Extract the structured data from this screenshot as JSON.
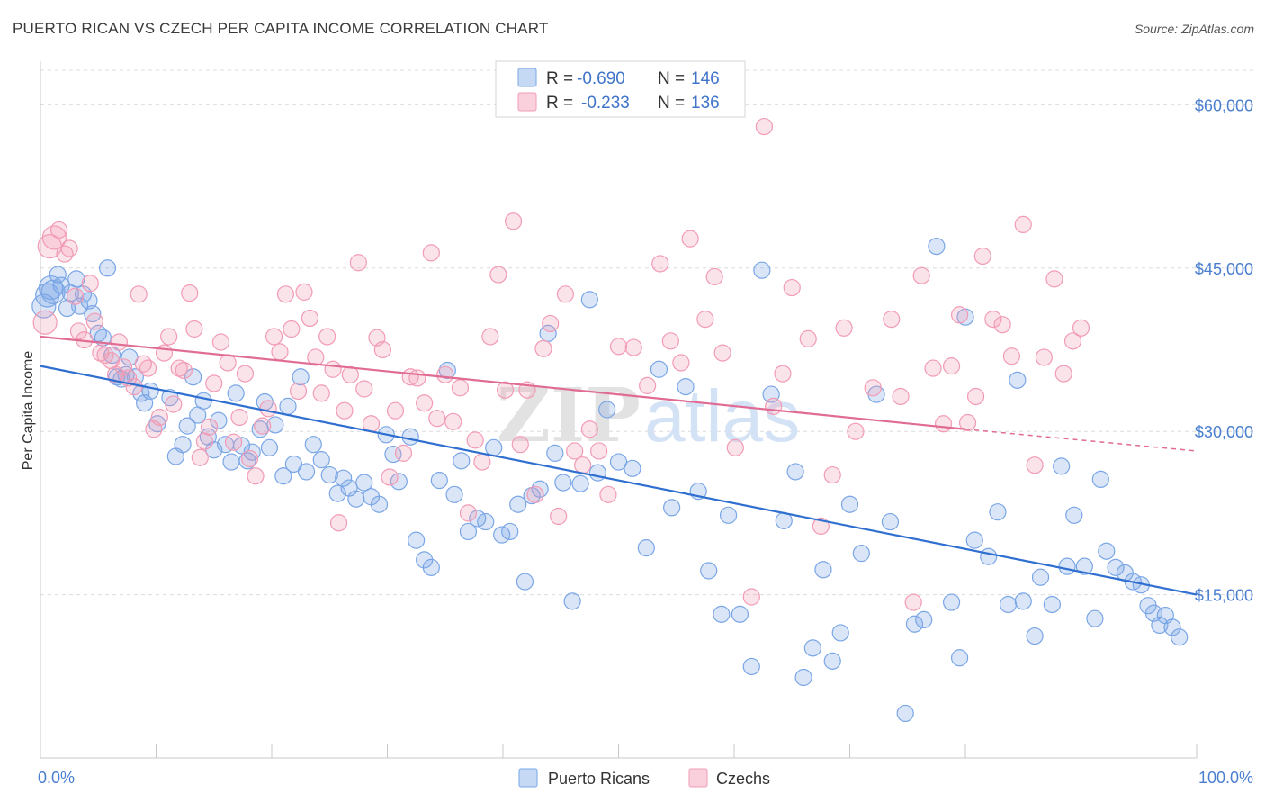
{
  "title": "PUERTO RICAN VS CZECH PER CAPITA INCOME CORRELATION CHART",
  "source": "Source: ZipAtlas.com",
  "chart_data": {
    "type": "scatter",
    "ylabel": "Per Capita Income",
    "xlim": [
      0,
      100
    ],
    "ylim": [
      0,
      64000
    ],
    "x_tick_labels": [
      "0.0%",
      "100.0%"
    ],
    "y_ticks": [
      15000,
      30000,
      45000,
      60000
    ],
    "y_tick_labels": [
      "$15,000",
      "$30,000",
      "$45,000",
      "$60,000"
    ],
    "grid": true,
    "watermark": "ZIPatlas",
    "legend_top": [
      {
        "r_label": "R =",
        "r_value": "-0.690",
        "n_label": "N =",
        "n_value": "146",
        "color": "#7aa6e6"
      },
      {
        "r_label": "R =",
        "r_value": "-0.233",
        "n_label": "N =",
        "n_value": "136",
        "color": "#f29bb5"
      }
    ],
    "series": [
      {
        "name": "Puerto Ricans",
        "color": "#7aa6e6",
        "line_color": "#2f6fd0",
        "trend": {
          "x": [
            0,
            100
          ],
          "y": [
            36000,
            15000
          ]
        },
        "points": [
          [
            0.3,
            41500
          ],
          [
            0.6,
            42500
          ],
          [
            0.9,
            43200
          ],
          [
            1.1,
            42800
          ],
          [
            1.5,
            44400
          ],
          [
            1.8,
            43400
          ],
          [
            2.3,
            41300
          ],
          [
            2.6,
            42700
          ],
          [
            3.1,
            44000
          ],
          [
            3.4,
            41500
          ],
          [
            3.7,
            42600
          ],
          [
            4.2,
            42000
          ],
          [
            4.5,
            40800
          ],
          [
            5.0,
            39000
          ],
          [
            5.4,
            38600
          ],
          [
            5.8,
            45000
          ],
          [
            6.2,
            37000
          ],
          [
            6.6,
            35000
          ],
          [
            7.0,
            34800
          ],
          [
            7.4,
            35200
          ],
          [
            7.7,
            36800
          ],
          [
            8.2,
            35000
          ],
          [
            8.7,
            33500
          ],
          [
            9.0,
            32600
          ],
          [
            9.5,
            33700
          ],
          [
            10.1,
            30700
          ],
          [
            11.2,
            33100
          ],
          [
            11.7,
            27700
          ],
          [
            12.3,
            28800
          ],
          [
            12.7,
            30500
          ],
          [
            13.2,
            35000
          ],
          [
            13.6,
            31500
          ],
          [
            14.1,
            32800
          ],
          [
            14.5,
            29500
          ],
          [
            15.0,
            28300
          ],
          [
            15.4,
            31000
          ],
          [
            16.0,
            28800
          ],
          [
            16.5,
            27200
          ],
          [
            16.9,
            33500
          ],
          [
            17.4,
            28700
          ],
          [
            17.9,
            27300
          ],
          [
            18.3,
            28100
          ],
          [
            19.0,
            30200
          ],
          [
            19.4,
            32700
          ],
          [
            19.8,
            28500
          ],
          [
            20.3,
            30600
          ],
          [
            21.0,
            25900
          ],
          [
            21.4,
            32300
          ],
          [
            21.9,
            27000
          ],
          [
            22.5,
            35000
          ],
          [
            23.0,
            26300
          ],
          [
            23.6,
            28800
          ],
          [
            24.3,
            27400
          ],
          [
            25.0,
            26000
          ],
          [
            25.7,
            24300
          ],
          [
            26.2,
            25700
          ],
          [
            26.7,
            24800
          ],
          [
            27.3,
            23800
          ],
          [
            28.0,
            25300
          ],
          [
            28.6,
            24000
          ],
          [
            29.3,
            23300
          ],
          [
            29.9,
            29700
          ],
          [
            30.5,
            27900
          ],
          [
            31.0,
            25400
          ],
          [
            32.0,
            29500
          ],
          [
            32.5,
            20000
          ],
          [
            33.2,
            18200
          ],
          [
            33.8,
            17500
          ],
          [
            34.5,
            25500
          ],
          [
            35.2,
            35600
          ],
          [
            35.8,
            24200
          ],
          [
            36.4,
            27300
          ],
          [
            37.0,
            20800
          ],
          [
            37.8,
            22000
          ],
          [
            38.5,
            21700
          ],
          [
            39.2,
            28500
          ],
          [
            39.9,
            20500
          ],
          [
            40.6,
            20800
          ],
          [
            41.3,
            23300
          ],
          [
            41.9,
            16200
          ],
          [
            42.5,
            24100
          ],
          [
            43.2,
            24700
          ],
          [
            43.9,
            39000
          ],
          [
            44.5,
            28000
          ],
          [
            45.2,
            25300
          ],
          [
            46.0,
            14400
          ],
          [
            46.7,
            25200
          ],
          [
            47.5,
            42100
          ],
          [
            48.2,
            26200
          ],
          [
            49.0,
            32000
          ],
          [
            50.0,
            27200
          ],
          [
            51.2,
            26600
          ],
          [
            52.4,
            19300
          ],
          [
            53.5,
            35700
          ],
          [
            54.6,
            23000
          ],
          [
            55.8,
            34100
          ],
          [
            56.9,
            24500
          ],
          [
            57.8,
            17200
          ],
          [
            58.9,
            13200
          ],
          [
            59.5,
            22300
          ],
          [
            60.5,
            13200
          ],
          [
            61.5,
            8400
          ],
          [
            62.4,
            44800
          ],
          [
            63.2,
            33400
          ],
          [
            64.3,
            21800
          ],
          [
            65.3,
            26300
          ],
          [
            66.0,
            7400
          ],
          [
            66.8,
            10100
          ],
          [
            67.7,
            17300
          ],
          [
            68.5,
            8900
          ],
          [
            69.2,
            11500
          ],
          [
            70.0,
            23300
          ],
          [
            71.0,
            18800
          ],
          [
            72.3,
            33400
          ],
          [
            73.5,
            21700
          ],
          [
            74.8,
            4100
          ],
          [
            75.6,
            12300
          ],
          [
            76.4,
            12700
          ],
          [
            77.5,
            47000
          ],
          [
            78.8,
            14300
          ],
          [
            79.5,
            9200
          ],
          [
            80.0,
            40500
          ],
          [
            80.8,
            20000
          ],
          [
            82.0,
            18500
          ],
          [
            82.8,
            22600
          ],
          [
            83.7,
            14100
          ],
          [
            84.5,
            34700
          ],
          [
            85.0,
            14400
          ],
          [
            86.0,
            11200
          ],
          [
            86.5,
            16600
          ],
          [
            87.5,
            14100
          ],
          [
            88.3,
            26800
          ],
          [
            88.8,
            17600
          ],
          [
            89.4,
            22300
          ],
          [
            90.3,
            17600
          ],
          [
            91.2,
            12800
          ],
          [
            91.7,
            25600
          ],
          [
            92.2,
            19000
          ],
          [
            93.0,
            17500
          ],
          [
            93.8,
            17000
          ],
          [
            94.5,
            16200
          ],
          [
            95.2,
            15900
          ],
          [
            95.8,
            14000
          ],
          [
            96.3,
            13300
          ],
          [
            96.8,
            12200
          ],
          [
            97.3,
            13100
          ],
          [
            97.9,
            12000
          ],
          [
            98.5,
            11100
          ]
        ]
      },
      {
        "name": "Czechs",
        "color": "#f29bb5",
        "line_color": "#e06b93",
        "trend": {
          "x": [
            0,
            80
          ],
          "y": [
            38700,
            30200
          ]
        },
        "trend_dashed": {
          "x": [
            80,
            100
          ],
          "y": [
            30200,
            28200
          ]
        },
        "points": [
          [
            0.4,
            40000
          ],
          [
            0.8,
            47000
          ],
          [
            1.2,
            47800
          ],
          [
            1.6,
            48500
          ],
          [
            2.1,
            46300
          ],
          [
            2.5,
            46800
          ],
          [
            3.0,
            42400
          ],
          [
            3.3,
            39200
          ],
          [
            3.8,
            38400
          ],
          [
            4.3,
            43600
          ],
          [
            4.7,
            40100
          ],
          [
            5.2,
            37200
          ],
          [
            5.6,
            37000
          ],
          [
            6.1,
            36500
          ],
          [
            6.5,
            35200
          ],
          [
            6.8,
            38200
          ],
          [
            7.2,
            35900
          ],
          [
            7.6,
            34900
          ],
          [
            8.1,
            34100
          ],
          [
            8.5,
            42600
          ],
          [
            8.9,
            36200
          ],
          [
            9.3,
            35800
          ],
          [
            9.8,
            30200
          ],
          [
            10.3,
            31300
          ],
          [
            10.7,
            37200
          ],
          [
            11.1,
            38700
          ],
          [
            11.5,
            32500
          ],
          [
            12.0,
            35800
          ],
          [
            12.4,
            35600
          ],
          [
            12.9,
            42700
          ],
          [
            13.3,
            39400
          ],
          [
            13.8,
            27600
          ],
          [
            14.2,
            29100
          ],
          [
            14.6,
            30400
          ],
          [
            15.0,
            34400
          ],
          [
            15.6,
            38200
          ],
          [
            16.2,
            36300
          ],
          [
            16.7,
            29000
          ],
          [
            17.2,
            31300
          ],
          [
            17.7,
            35300
          ],
          [
            18.1,
            27500
          ],
          [
            18.6,
            25900
          ],
          [
            19.2,
            30500
          ],
          [
            19.7,
            32100
          ],
          [
            20.2,
            38700
          ],
          [
            20.7,
            37300
          ],
          [
            21.2,
            42600
          ],
          [
            21.7,
            39400
          ],
          [
            22.3,
            33700
          ],
          [
            22.8,
            42800
          ],
          [
            23.3,
            40400
          ],
          [
            23.8,
            36800
          ],
          [
            24.3,
            33500
          ],
          [
            24.8,
            38700
          ],
          [
            25.3,
            35700
          ],
          [
            25.8,
            21600
          ],
          [
            26.3,
            31900
          ],
          [
            26.8,
            35200
          ],
          [
            27.5,
            45500
          ],
          [
            28.0,
            33900
          ],
          [
            28.6,
            30700
          ],
          [
            29.1,
            38600
          ],
          [
            29.6,
            37500
          ],
          [
            30.2,
            25800
          ],
          [
            30.7,
            31900
          ],
          [
            31.4,
            28000
          ],
          [
            32.0,
            35000
          ],
          [
            32.6,
            34900
          ],
          [
            33.2,
            32600
          ],
          [
            33.8,
            46400
          ],
          [
            34.3,
            31200
          ],
          [
            35.0,
            35200
          ],
          [
            35.7,
            30900
          ],
          [
            36.3,
            34000
          ],
          [
            37.0,
            22500
          ],
          [
            37.6,
            29200
          ],
          [
            38.2,
            27200
          ],
          [
            38.9,
            38700
          ],
          [
            39.6,
            44400
          ],
          [
            40.2,
            33800
          ],
          [
            40.9,
            49300
          ],
          [
            41.5,
            28800
          ],
          [
            42.1,
            33800
          ],
          [
            42.8,
            24200
          ],
          [
            43.5,
            37600
          ],
          [
            44.1,
            39900
          ],
          [
            44.8,
            22200
          ],
          [
            45.4,
            42600
          ],
          [
            46.2,
            28200
          ],
          [
            46.9,
            26900
          ],
          [
            47.5,
            30200
          ],
          [
            48.3,
            28200
          ],
          [
            49.1,
            24200
          ],
          [
            50.0,
            37800
          ],
          [
            51.3,
            37700
          ],
          [
            52.5,
            34200
          ],
          [
            53.6,
            45400
          ],
          [
            54.5,
            38300
          ],
          [
            55.4,
            36300
          ],
          [
            56.2,
            47700
          ],
          [
            57.5,
            40300
          ],
          [
            58.3,
            44200
          ],
          [
            59.0,
            37200
          ],
          [
            60.1,
            28500
          ],
          [
            61.5,
            14800
          ],
          [
            62.6,
            58000
          ],
          [
            63.4,
            32300
          ],
          [
            64.2,
            35300
          ],
          [
            65.0,
            43200
          ],
          [
            66.4,
            38500
          ],
          [
            67.5,
            21300
          ],
          [
            68.5,
            26000
          ],
          [
            69.5,
            39500
          ],
          [
            70.5,
            30000
          ],
          [
            72.0,
            34000
          ],
          [
            73.6,
            40300
          ],
          [
            74.4,
            33200
          ],
          [
            75.5,
            14300
          ],
          [
            76.2,
            44300
          ],
          [
            77.2,
            35800
          ],
          [
            78.1,
            30700
          ],
          [
            78.8,
            36000
          ],
          [
            79.5,
            40700
          ],
          [
            80.2,
            30800
          ],
          [
            80.9,
            33200
          ],
          [
            81.5,
            46100
          ],
          [
            82.4,
            40300
          ],
          [
            83.2,
            39800
          ],
          [
            84.0,
            36900
          ],
          [
            85.0,
            49000
          ],
          [
            86.0,
            26900
          ],
          [
            86.8,
            36800
          ],
          [
            87.7,
            44000
          ],
          [
            88.5,
            35300
          ],
          [
            89.3,
            38300
          ],
          [
            90.0,
            39500
          ]
        ]
      }
    ]
  }
}
